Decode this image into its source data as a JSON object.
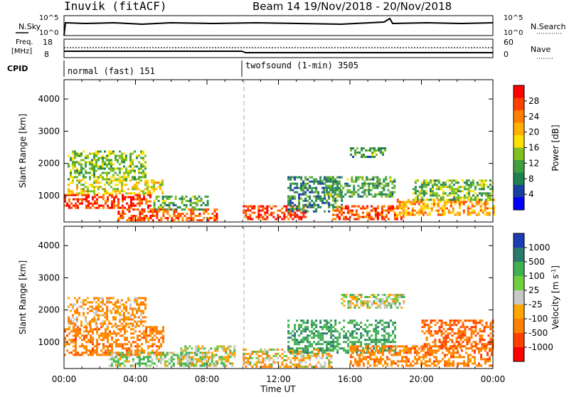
{
  "header": {
    "station": "Inuvik (fitACF)",
    "beam_date": "Beam 14  19/Nov/2018 - 20/Nov/2018"
  },
  "panels": {
    "nsky_label": "N.Sky",
    "nsky_ticks": [
      "10^5",
      "10^0"
    ],
    "nsearch_label": "N.Search",
    "nsearch_ticks": [
      "10^5",
      "10^0"
    ],
    "freq_label": "Freq.",
    "freq_unit": "[MHz]",
    "freq_ticks": [
      "18",
      "8"
    ],
    "nave_label": "Nave",
    "nave_ticks": [
      "60",
      "0"
    ],
    "cpid_label": "CPID",
    "cpid_modes": [
      "normal (fast) 151",
      "twofsound (1-min) 3505"
    ]
  },
  "colorbars": {
    "power": {
      "label": "Power [dB]",
      "ticks": [
        "28",
        "24",
        "20",
        "16",
        "12",
        "8",
        "4"
      ],
      "colors": [
        "#ff0000",
        "#ff4000",
        "#ff8000",
        "#ffb000",
        "#ffe000",
        "#80c020",
        "#40a040",
        "#208050",
        "#1840a0",
        "#0000ff"
      ]
    },
    "velocity": {
      "label": "Velocity [m s",
      "label_sup": "-1",
      "label_end": "]",
      "ticks": [
        "1000",
        "500",
        "100",
        "25",
        "-25",
        "-100",
        "-500",
        "-1000"
      ],
      "colors": [
        "#1a3cb4",
        "#2a7a6a",
        "#40b050",
        "#70d040",
        "#c8c8c8",
        "#ffa500",
        "#ff8000",
        "#ff4000",
        "#ff0000"
      ]
    }
  },
  "chart_data": [
    {
      "type": "heatmap",
      "title": "",
      "quantity": "Power [dB]",
      "xlabel": "Time UT",
      "ylabel": "Slant Range [km]",
      "xticks": [
        "00:00",
        "04:00",
        "08:00",
        "12:00",
        "16:00",
        "20:00",
        "00:00"
      ],
      "yticks": [
        1000,
        2000,
        3000,
        4000
      ],
      "xlim_hours": [
        0,
        24
      ],
      "ylim_km": [
        180,
        4600
      ],
      "regions": [
        {
          "t0": 0.0,
          "t1": 4.8,
          "r0": 600,
          "r1": 1050,
          "value": 28
        },
        {
          "t0": 0.2,
          "t1": 5.5,
          "r0": 1050,
          "r1": 1500,
          "value": 18
        },
        {
          "t0": 0.2,
          "t1": 4.5,
          "r0": 1500,
          "r1": 2400,
          "value": 14
        },
        {
          "t0": 3.0,
          "t1": 8.5,
          "r0": 250,
          "r1": 600,
          "value": 26
        },
        {
          "t0": 5.0,
          "t1": 8.0,
          "r0": 600,
          "r1": 1000,
          "value": 12
        },
        {
          "t0": 10.0,
          "t1": 13.5,
          "r0": 250,
          "r1": 700,
          "value": 28
        },
        {
          "t0": 12.5,
          "t1": 15.5,
          "r0": 500,
          "r1": 1600,
          "value": 10
        },
        {
          "t0": 14.5,
          "t1": 18.5,
          "r0": 1000,
          "r1": 1600,
          "value": 12
        },
        {
          "t0": 16.0,
          "t1": 18.0,
          "r0": 2200,
          "r1": 2500,
          "value": 12
        },
        {
          "t0": 15.0,
          "t1": 19.0,
          "r0": 250,
          "r1": 700,
          "value": 26
        },
        {
          "t0": 18.5,
          "t1": 24.0,
          "r0": 400,
          "r1": 900,
          "value": 22
        },
        {
          "t0": 19.5,
          "t1": 24.0,
          "r0": 900,
          "r1": 1500,
          "value": 14
        }
      ]
    },
    {
      "type": "heatmap",
      "title": "",
      "quantity": "Velocity [m s-1]",
      "xlabel": "Time UT",
      "ylabel": "Slant Range [km]",
      "xticks": [
        "00:00",
        "04:00",
        "08:00",
        "12:00",
        "16:00",
        "20:00",
        "00:00"
      ],
      "yticks": [
        1000,
        2000,
        3000,
        4000
      ],
      "xlim_hours": [
        0,
        24
      ],
      "ylim_km": [
        180,
        4600
      ],
      "regions": [
        {
          "t0": 0.0,
          "t1": 5.5,
          "r0": 600,
          "r1": 1500,
          "value": -200
        },
        {
          "t0": 0.2,
          "t1": 4.5,
          "r0": 1500,
          "r1": 2400,
          "value": -100
        },
        {
          "t0": 2.5,
          "t1": 8.5,
          "r0": 250,
          "r1": 700,
          "value": 50
        },
        {
          "t0": 6.5,
          "t1": 9.5,
          "r0": 250,
          "r1": 900,
          "value": 0
        },
        {
          "t0": 10.0,
          "t1": 15.0,
          "r0": 250,
          "r1": 800,
          "value": -50
        },
        {
          "t0": 12.5,
          "t1": 18.5,
          "r0": 700,
          "r1": 1700,
          "value": 200
        },
        {
          "t0": 15.5,
          "t1": 19.0,
          "r0": 2100,
          "r1": 2500,
          "value": 10
        },
        {
          "t0": 16.0,
          "t1": 24.0,
          "r0": 250,
          "r1": 900,
          "value": -200
        },
        {
          "t0": 20.0,
          "t1": 24.0,
          "r0": 800,
          "r1": 1700,
          "value": -300
        }
      ]
    }
  ]
}
